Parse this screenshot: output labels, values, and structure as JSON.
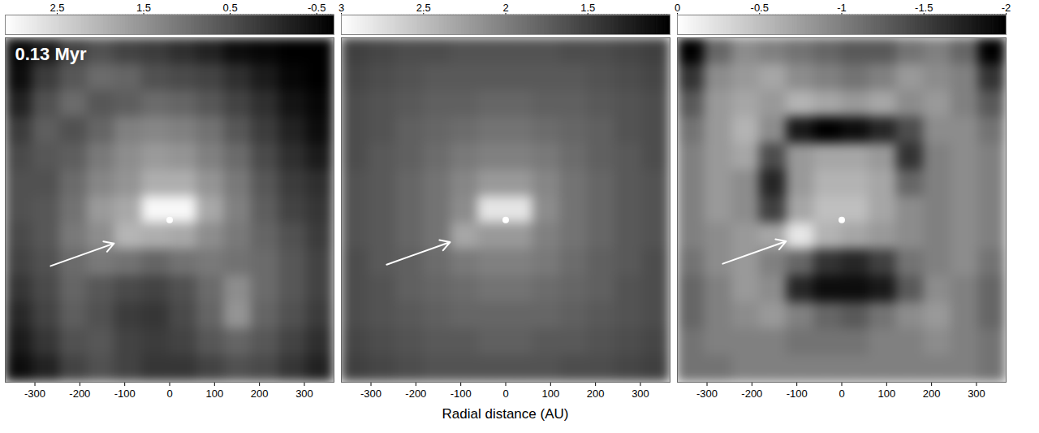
{
  "chart_data": [
    {
      "type": "heatmap",
      "label": "0.13 Myr",
      "xlim": [
        -366,
        366
      ],
      "ylim": [
        -370,
        415
      ],
      "xticks": [
        -300,
        -200,
        -100,
        0,
        100,
        200,
        300
      ],
      "tick_labels": "x",
      "colorbar": {
        "range": [
          3.1,
          -0.7
        ],
        "ticks": [
          2.5,
          1.5,
          0.5,
          -0.5
        ]
      },
      "points": {
        "x": [
          0
        ],
        "y": [
          0
        ],
        "color": "white"
      },
      "arrow": {
        "x": -100,
        "y": -45
      },
      "cells": [
        [
          -0.6,
          -0.3,
          0.3,
          0.5,
          0.3,
          0.2,
          0.0,
          -0.2,
          -0.5,
          -0.6,
          -0.7,
          -0.7
        ],
        [
          -0.5,
          0.2,
          0.6,
          0.9,
          0.8,
          0.5,
          0.4,
          0.3,
          0.0,
          -0.3,
          -0.6,
          -0.7
        ],
        [
          -0.2,
          0.5,
          0.9,
          0.6,
          0.7,
          0.9,
          0.8,
          0.6,
          0.3,
          0.0,
          -0.4,
          -0.6
        ],
        [
          0.2,
          0.7,
          0.5,
          0.8,
          1.2,
          1.3,
          1.2,
          1.0,
          0.6,
          0.2,
          -0.2,
          -0.5
        ],
        [
          0.4,
          0.6,
          0.7,
          1.1,
          1.4,
          1.6,
          1.5,
          1.2,
          0.9,
          0.4,
          0.0,
          -0.3
        ],
        [
          0.5,
          0.5,
          0.9,
          1.3,
          1.5,
          1.9,
          1.9,
          1.5,
          1.1,
          0.6,
          0.2,
          0.0
        ],
        [
          0.5,
          0.6,
          1.0,
          1.6,
          1.8,
          3.0,
          3.0,
          1.8,
          1.2,
          0.7,
          0.3,
          0.1
        ],
        [
          0.4,
          0.6,
          1.1,
          1.4,
          2.0,
          1.9,
          1.8,
          1.4,
          1.1,
          0.8,
          0.5,
          0.2
        ],
        [
          0.3,
          0.5,
          0.9,
          1.1,
          1.0,
          0.8,
          1.0,
          1.1,
          1.0,
          0.9,
          0.6,
          0.3
        ],
        [
          0.1,
          0.4,
          0.8,
          0.6,
          0.4,
          0.3,
          0.5,
          0.9,
          1.4,
          0.9,
          0.6,
          0.3
        ],
        [
          -0.1,
          0.3,
          0.7,
          0.5,
          0.2,
          0.1,
          0.4,
          0.8,
          1.5,
          0.8,
          0.5,
          0.2
        ],
        [
          -0.3,
          0.1,
          0.5,
          0.6,
          0.3,
          0.2,
          0.3,
          0.6,
          0.8,
          0.6,
          0.3,
          0.0
        ],
        [
          -0.5,
          -0.2,
          0.3,
          0.5,
          0.3,
          0.1,
          0.1,
          0.3,
          0.5,
          0.4,
          0.1,
          -0.2
        ]
      ]
    },
    {
      "type": "heatmap",
      "xlabel": "Radial distance (AU)",
      "xlim": [
        -366,
        366
      ],
      "ylim": [
        -370,
        415
      ],
      "xticks": [
        -300,
        -200,
        -100,
        0,
        100,
        200,
        300
      ],
      "tick_labels": "x",
      "colorbar": {
        "range": [
          3,
          1.0
        ],
        "ticks": [
          3,
          2.5,
          2,
          1.5
        ]
      },
      "points": {
        "x": [
          0
        ],
        "y": [
          0
        ],
        "color": "white"
      },
      "arrow": {
        "x": -100,
        "y": -42
      },
      "cells": [
        [
          1.5,
          1.55,
          1.6,
          1.6,
          1.65,
          1.65,
          1.65,
          1.65,
          1.6,
          1.6,
          1.55,
          1.5
        ],
        [
          1.55,
          1.6,
          1.65,
          1.7,
          1.7,
          1.7,
          1.7,
          1.7,
          1.7,
          1.65,
          1.6,
          1.55
        ],
        [
          1.6,
          1.65,
          1.7,
          1.75,
          1.75,
          1.8,
          1.8,
          1.75,
          1.75,
          1.7,
          1.65,
          1.6
        ],
        [
          1.6,
          1.65,
          1.75,
          1.8,
          1.85,
          1.9,
          1.9,
          1.85,
          1.8,
          1.75,
          1.65,
          1.6
        ],
        [
          1.6,
          1.7,
          1.75,
          1.85,
          1.95,
          2.0,
          2.0,
          1.95,
          1.85,
          1.75,
          1.7,
          1.6
        ],
        [
          1.65,
          1.7,
          1.8,
          1.9,
          2.05,
          2.2,
          2.2,
          2.05,
          1.9,
          1.8,
          1.7,
          1.65
        ],
        [
          1.65,
          1.7,
          1.8,
          1.9,
          2.1,
          2.8,
          2.8,
          2.1,
          1.9,
          1.8,
          1.7,
          1.65
        ],
        [
          1.65,
          1.7,
          1.8,
          1.9,
          2.3,
          2.2,
          2.2,
          2.0,
          1.9,
          1.8,
          1.7,
          1.65
        ],
        [
          1.6,
          1.7,
          1.75,
          1.85,
          1.95,
          2.0,
          2.0,
          1.95,
          1.85,
          1.75,
          1.7,
          1.6
        ],
        [
          1.6,
          1.65,
          1.75,
          1.8,
          1.85,
          1.9,
          1.9,
          1.85,
          1.8,
          1.75,
          1.65,
          1.6
        ],
        [
          1.6,
          1.65,
          1.7,
          1.75,
          1.8,
          1.8,
          1.8,
          1.8,
          1.75,
          1.7,
          1.65,
          1.6
        ],
        [
          1.55,
          1.6,
          1.65,
          1.7,
          1.7,
          1.75,
          1.75,
          1.7,
          1.7,
          1.65,
          1.6,
          1.55
        ],
        [
          1.5,
          1.55,
          1.6,
          1.65,
          1.65,
          1.65,
          1.65,
          1.65,
          1.6,
          1.6,
          1.55,
          1.5
        ]
      ]
    },
    {
      "type": "heatmap",
      "xlim": [
        -366,
        366
      ],
      "ylim": [
        -370,
        415
      ],
      "xticks": [
        -300,
        -200,
        -100,
        0,
        100,
        200,
        300
      ],
      "tick_labels": "x",
      "colorbar": {
        "range": [
          0,
          -2
        ],
        "ticks": [
          0,
          -0.5,
          -1,
          -1.5,
          -2
        ]
      },
      "points": {
        "x": [
          0
        ],
        "y": [
          0
        ],
        "color": "white"
      },
      "arrow": {
        "x": -100,
        "y": -40
      },
      "cells": [
        [
          -2.0,
          -1.2,
          -0.9,
          -1.0,
          -1.1,
          -1.2,
          -1.3,
          -1.3,
          -1.1,
          -1.0,
          -1.2,
          -2.0
        ],
        [
          -1.6,
          -0.9,
          -0.8,
          -0.7,
          -0.9,
          -1.0,
          -1.1,
          -1.0,
          -0.8,
          -0.9,
          -1.0,
          -1.6
        ],
        [
          -1.3,
          -0.8,
          -0.7,
          -0.8,
          -0.6,
          -0.7,
          -0.8,
          -0.7,
          -0.9,
          -0.8,
          -1.0,
          -1.3
        ],
        [
          -1.1,
          -0.8,
          -0.6,
          -0.9,
          -1.8,
          -2.0,
          -1.9,
          -1.7,
          -1.4,
          -0.9,
          -0.9,
          -1.1
        ],
        [
          -1.0,
          -0.8,
          -0.7,
          -1.4,
          -0.8,
          -0.7,
          -0.7,
          -0.8,
          -1.6,
          -1.0,
          -0.9,
          -1.0
        ],
        [
          -1.0,
          -0.8,
          -0.9,
          -1.7,
          -0.8,
          -0.6,
          -0.6,
          -0.7,
          -1.2,
          -1.0,
          -0.9,
          -1.0
        ],
        [
          -1.0,
          -0.8,
          -0.9,
          -1.5,
          -0.7,
          -0.5,
          -0.5,
          -0.7,
          -0.9,
          -1.0,
          -0.9,
          -1.0
        ],
        [
          -1.0,
          -0.9,
          -0.8,
          -0.7,
          -0.2,
          -0.6,
          -0.7,
          -0.8,
          -0.9,
          -1.0,
          -0.9,
          -1.0
        ],
        [
          -1.1,
          -0.9,
          -0.8,
          -1.0,
          -1.2,
          -1.6,
          -1.7,
          -1.5,
          -1.1,
          -1.0,
          -0.9,
          -1.1
        ],
        [
          -1.2,
          -1.0,
          -0.8,
          -0.9,
          -1.7,
          -1.9,
          -1.9,
          -1.8,
          -1.3,
          -0.9,
          -1.0,
          -1.2
        ],
        [
          -1.2,
          -1.0,
          -0.9,
          -0.8,
          -1.0,
          -1.2,
          -1.3,
          -1.1,
          -0.9,
          -0.8,
          -1.0,
          -1.2
        ],
        [
          -1.1,
          -1.0,
          -1.0,
          -1.0,
          -1.1,
          -1.1,
          -1.1,
          -1.0,
          -1.0,
          -0.9,
          -1.0,
          -1.1
        ],
        [
          -1.1,
          -1.1,
          -1.0,
          -1.0,
          -1.0,
          -1.0,
          -1.0,
          -1.0,
          -1.0,
          -1.0,
          -1.0,
          -1.1
        ]
      ]
    }
  ]
}
